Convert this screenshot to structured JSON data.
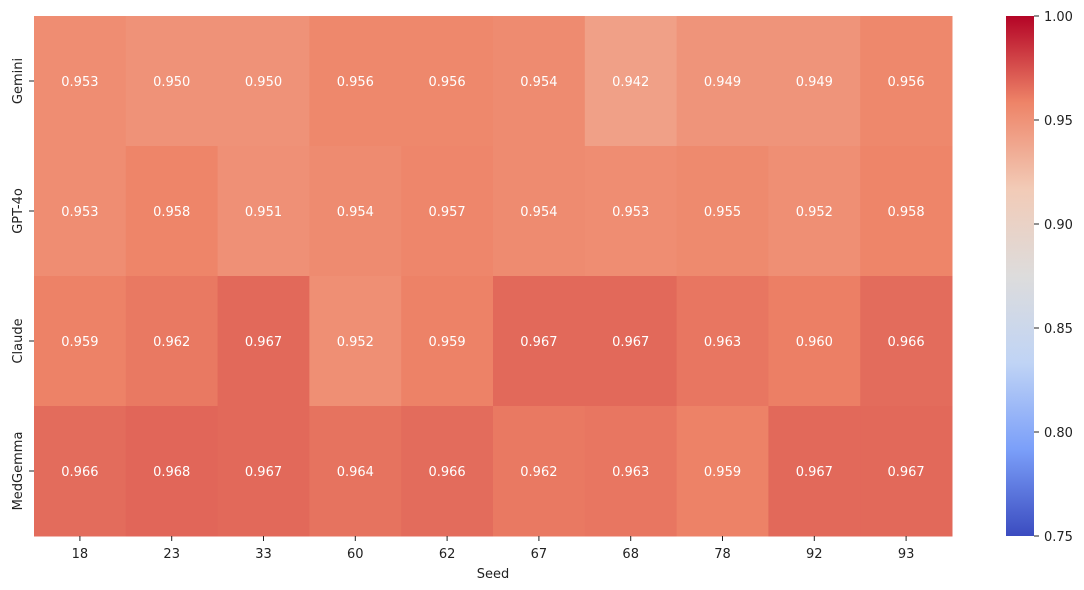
{
  "chart_data": {
    "type": "heatmap",
    "title": "",
    "xlabel": "Seed",
    "ylabel": "",
    "x": [
      "18",
      "23",
      "33",
      "60",
      "62",
      "67",
      "68",
      "78",
      "92",
      "93"
    ],
    "y": [
      "Gemini",
      "GPT-4o",
      "Claude",
      "MedGemma"
    ],
    "values": [
      [
        0.953,
        0.95,
        0.95,
        0.956,
        0.956,
        0.954,
        0.942,
        0.949,
        0.949,
        0.956
      ],
      [
        0.953,
        0.958,
        0.951,
        0.954,
        0.957,
        0.954,
        0.953,
        0.955,
        0.952,
        0.958
      ],
      [
        0.959,
        0.962,
        0.967,
        0.952,
        0.959,
        0.967,
        0.967,
        0.963,
        0.96,
        0.966
      ],
      [
        0.966,
        0.968,
        0.967,
        0.964,
        0.966,
        0.962,
        0.963,
        0.959,
        0.967,
        0.967
      ]
    ],
    "value_format": "0.000",
    "colorbar": {
      "vmin": 0.75,
      "vmax": 1.0,
      "ticks": [
        "0.75",
        "0.80",
        "0.85",
        "0.90",
        "0.95",
        "1.00"
      ],
      "colormap": "coolwarm",
      "colors": [
        "#3b4cc0",
        "#7b9ff9",
        "#c0d4f5",
        "#dddcdc",
        "#f2cbb7",
        "#ee8468",
        "#b40426"
      ]
    },
    "grid": false,
    "legend": "colorbar-right"
  }
}
